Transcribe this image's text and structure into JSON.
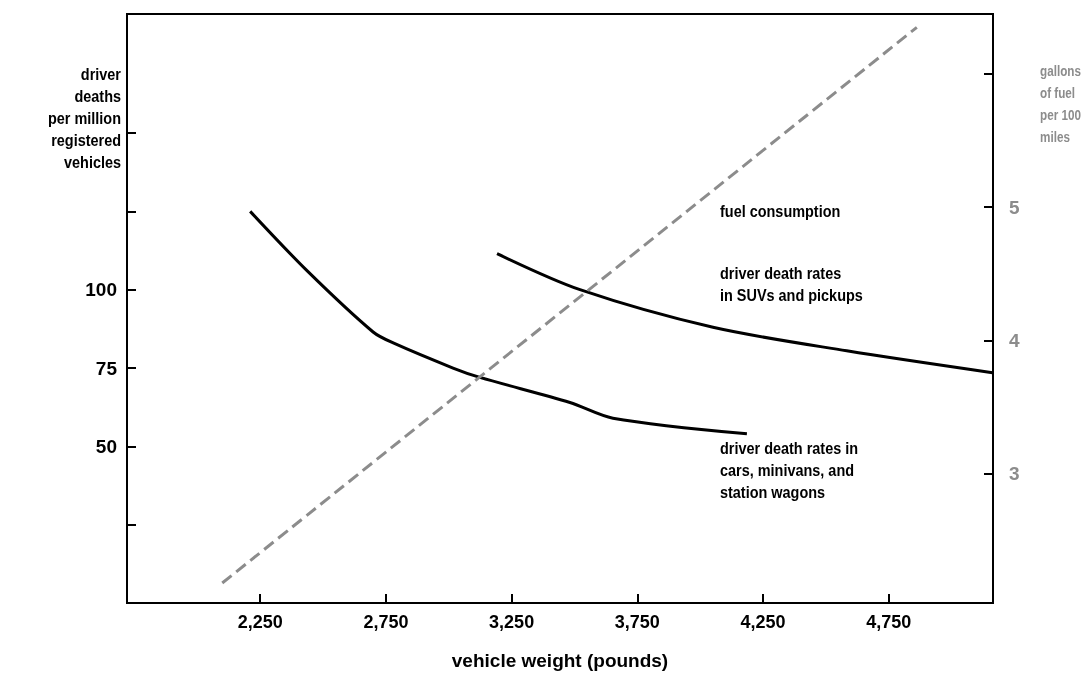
{
  "chart_data": {
    "type": "line",
    "xlabel": "vehicle weight (pounds)",
    "ylabel": "driver\ndeaths\nper million\nregistered\nvehicles",
    "y2label": "gallons\nof fuel\nper 100\nmiles",
    "xlim": [
      1720,
      5165
    ],
    "xticks": [
      {
        "value": 2250,
        "label": "2,250"
      },
      {
        "value": 2750,
        "label": "2,750"
      },
      {
        "value": 3250,
        "label": "3,250"
      },
      {
        "value": 3750,
        "label": "3,750"
      },
      {
        "value": 4250,
        "label": "4,250"
      },
      {
        "value": 4750,
        "label": "4,750"
      }
    ],
    "ylim": [
      0,
      188
    ],
    "yticks": [
      {
        "value": 25,
        "label": null
      },
      50,
      75,
      100,
      {
        "value": 125,
        "label": null
      },
      {
        "value": 150,
        "label": null
      }
    ],
    "y2lim": [
      2.03,
      6.45
    ],
    "y2ticks": [
      3,
      4,
      5,
      {
        "value": 6,
        "label": null
      }
    ],
    "grid": false,
    "marker": "none",
    "series": [
      {
        "color": "#000000",
        "line_style": "solid",
        "x": [
          2210,
          2437,
          2699,
          2779,
          3017,
          3124,
          3482,
          3653,
          4186
        ],
        "values": [
          125,
          106,
          86.5,
          83,
          75,
          72,
          64,
          59,
          54
        ]
      },
      {
        "color": "#000000",
        "line_style": "solid",
        "x": [
          3192,
          3522,
          4051,
          4583,
          5163
        ],
        "values": [
          111.5,
          100,
          88,
          80.5,
          73.5
        ]
      },
      {
        "color": "#8c8c8c",
        "line_style": "dashed",
        "axis": "y2",
        "x": [
          2099,
          4862
        ],
        "values": [
          2.18,
          6.35
        ]
      }
    ],
    "annotations": [
      "fuel consumption",
      "driver death rates\nin SUVs and pickups",
      "driver death rates in\ncars, minivans, and\nstation wagons"
    ]
  }
}
